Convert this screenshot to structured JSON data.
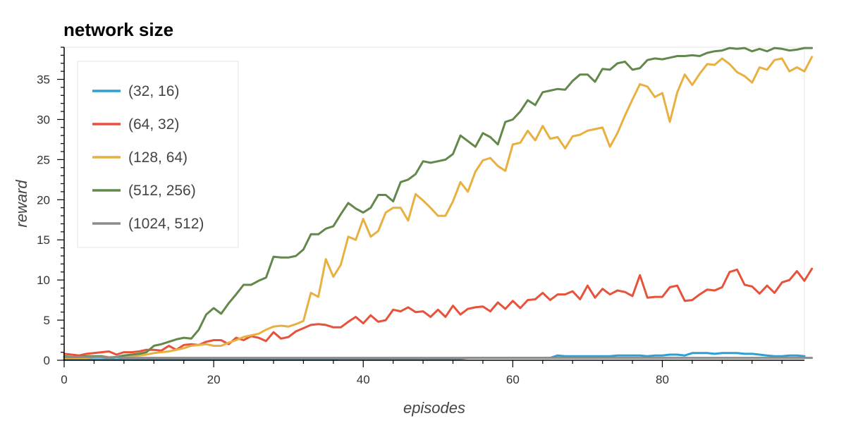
{
  "chart_data": {
    "type": "line",
    "title": "network size",
    "xlabel": "episodes",
    "ylabel": "reward",
    "xlim": [
      0,
      99
    ],
    "ylim": [
      0,
      39
    ],
    "x_ticks": [
      0,
      20,
      40,
      60,
      80
    ],
    "y_ticks": [
      0,
      5,
      10,
      15,
      20,
      25,
      30,
      35
    ],
    "grid": false,
    "legend_position": "top-left",
    "series": [
      {
        "name": "(32, 16)",
        "color": "#2e9fd4",
        "values": [
          0.1,
          0.1,
          0.1,
          0.1,
          0.1,
          0.1,
          0.1,
          0.1,
          0.1,
          0.1,
          0.1,
          0.1,
          0.1,
          0.1,
          0.1,
          0.1,
          0.1,
          0.1,
          0.1,
          0.1,
          0.15,
          0.15,
          0.15,
          0.15,
          0.15,
          0.15,
          0.15,
          0.15,
          0.15,
          0.15,
          0.15,
          0.15,
          0.15,
          0.15,
          0.15,
          0.15,
          0.15,
          0.2,
          0.2,
          0.2,
          0.2,
          0.2,
          0.2,
          0.2,
          0.2,
          0.2,
          0.2,
          0.2,
          0.2,
          0.2,
          0.2,
          0.2,
          0.2,
          0.2,
          0.3,
          0.3,
          0.3,
          0.3,
          0.3,
          0.3,
          0.3,
          0.3,
          0.3,
          0.3,
          0.3,
          0.3,
          0.6,
          0.5,
          0.5,
          0.5,
          0.5,
          0.5,
          0.5,
          0.5,
          0.6,
          0.6,
          0.6,
          0.6,
          0.5,
          0.6,
          0.6,
          0.7,
          0.7,
          0.6,
          0.9,
          0.9,
          0.9,
          0.8,
          0.9,
          0.9,
          0.9,
          0.8,
          0.8,
          0.7,
          0.6,
          0.5,
          0.5,
          0.6,
          0.6,
          0.5
        ]
      },
      {
        "name": "(64, 32)",
        "color": "#e8523a",
        "values": [
          0.8,
          0.7,
          0.6,
          0.8,
          0.9,
          1.0,
          1.1,
          0.7,
          1.0,
          1.0,
          1.1,
          1.3,
          1.3,
          1.2,
          1.8,
          1.3,
          1.9,
          2.0,
          1.9,
          2.3,
          2.5,
          2.5,
          2.0,
          2.8,
          2.5,
          3.0,
          2.8,
          2.4,
          3.5,
          2.7,
          2.9,
          3.6,
          4.0,
          4.4,
          4.5,
          4.4,
          4.1,
          4.1,
          4.8,
          5.4,
          4.6,
          5.6,
          4.8,
          5.0,
          6.3,
          6.1,
          6.6,
          6.0,
          6.1,
          5.4,
          6.3,
          5.4,
          6.8,
          5.7,
          6.4,
          6.6,
          6.7,
          6.1,
          7.2,
          6.4,
          7.4,
          6.5,
          7.5,
          7.6,
          8.4,
          7.5,
          8.2,
          8.2,
          8.6,
          7.6,
          9.3,
          7.8,
          8.9,
          8.2,
          8.7,
          8.5,
          8.0,
          10.6,
          7.8,
          7.9,
          7.9,
          9.1,
          9.3,
          7.4,
          7.5,
          8.2,
          8.8,
          8.7,
          9.1,
          11.0,
          11.3,
          9.4,
          9.2,
          8.3,
          9.3,
          8.4,
          9.7,
          10.0,
          11.1,
          9.9,
          11.4
        ]
      },
      {
        "name": "(128, 64)",
        "color": "#e8b040",
        "values": [
          0.3,
          0.3,
          0.3,
          0.3,
          0.4,
          0.5,
          0.4,
          0.4,
          0.4,
          0.5,
          0.6,
          0.7,
          0.9,
          1.0,
          1.1,
          1.3,
          1.5,
          1.8,
          1.9,
          2.0,
          1.8,
          1.8,
          2.2,
          2.5,
          2.9,
          3.1,
          3.3,
          3.8,
          4.2,
          4.3,
          4.2,
          4.5,
          4.9,
          8.4,
          7.9,
          12.6,
          10.4,
          11.9,
          15.4,
          15.0,
          17.6,
          15.4,
          16.1,
          18.4,
          19.0,
          19.0,
          17.4,
          20.7,
          19.9,
          19.0,
          18.0,
          18.0,
          19.8,
          22.2,
          21.0,
          23.5,
          24.9,
          25.2,
          24.2,
          23.6,
          26.9,
          27.1,
          28.6,
          27.4,
          29.2,
          27.6,
          27.8,
          26.4,
          27.9,
          28.1,
          28.6,
          28.8,
          29.0,
          26.6,
          28.3,
          30.5,
          32.5,
          34.4,
          34.1,
          32.8,
          33.3,
          29.7,
          33.4,
          35.6,
          34.3,
          35.7,
          36.9,
          36.8,
          37.6,
          36.9,
          35.9,
          35.4,
          34.6,
          36.5,
          36.2,
          37.4,
          37.6,
          36.0,
          36.5,
          36.0,
          37.8
        ]
      },
      {
        "name": "(512, 256)",
        "color": "#63884b",
        "values": [
          0.5,
          0.4,
          0.4,
          0.5,
          0.5,
          0.5,
          0.3,
          0.4,
          0.6,
          0.7,
          0.8,
          1.0,
          1.8,
          2.0,
          2.3,
          2.6,
          2.8,
          2.7,
          3.8,
          5.7,
          6.5,
          5.8,
          7.1,
          8.2,
          9.4,
          9.4,
          9.9,
          10.3,
          12.9,
          12.8,
          12.8,
          13.0,
          13.8,
          15.7,
          15.7,
          16.4,
          16.7,
          18.2,
          19.6,
          18.9,
          18.4,
          19.0,
          20.6,
          20.6,
          19.8,
          22.2,
          22.5,
          23.2,
          24.8,
          24.6,
          24.8,
          25.0,
          25.7,
          28.0,
          27.3,
          26.6,
          28.3,
          27.8,
          26.9,
          29.7,
          30.0,
          31.0,
          32.4,
          31.8,
          33.4,
          33.6,
          33.8,
          33.7,
          34.8,
          35.6,
          35.6,
          34.7,
          36.3,
          36.2,
          37.0,
          37.2,
          36.2,
          36.4,
          37.4,
          37.6,
          37.5,
          37.7,
          37.9,
          37.9,
          38.0,
          37.9,
          38.3,
          38.5,
          38.6,
          38.9,
          38.8,
          38.9,
          38.5,
          38.8,
          38.5,
          38.9,
          38.8,
          38.6,
          38.7,
          38.9,
          38.9
        ]
      },
      {
        "name": "(1024, 512)",
        "color": "#8c8c8c",
        "values": [
          0.4,
          0.4,
          0.4,
          0.4,
          0.4,
          0.4,
          0.3,
          0.4,
          0.3,
          0.3,
          0.3,
          0.3,
          0.3,
          0.3,
          0.3,
          0.3,
          0.3,
          0.3,
          0.3,
          0.3,
          0.3,
          0.3,
          0.3,
          0.3,
          0.3,
          0.3,
          0.3,
          0.3,
          0.3,
          0.3,
          0.3,
          0.3,
          0.3,
          0.3,
          0.3,
          0.3,
          0.3,
          0.3,
          0.3,
          0.3,
          0.3,
          0.3,
          0.3,
          0.3,
          0.3,
          0.3,
          0.3,
          0.3,
          0.3,
          0.3,
          0.3,
          0.3,
          0.3,
          0.3,
          0.3,
          0.3,
          0.3,
          0.3,
          0.3,
          0.3,
          0.3,
          0.3,
          0.3,
          0.3,
          0.3,
          0.3,
          0.3,
          0.3,
          0.3,
          0.3,
          0.3,
          0.3,
          0.3,
          0.3,
          0.3,
          0.3,
          0.3,
          0.3,
          0.3,
          0.3,
          0.3,
          0.3,
          0.3,
          0.3,
          0.3,
          0.3,
          0.3,
          0.3,
          0.3,
          0.3,
          0.3,
          0.3,
          0.3,
          0.3,
          0.3,
          0.3,
          0.3,
          0.3,
          0.3,
          0.3,
          0.3
        ]
      }
    ]
  }
}
